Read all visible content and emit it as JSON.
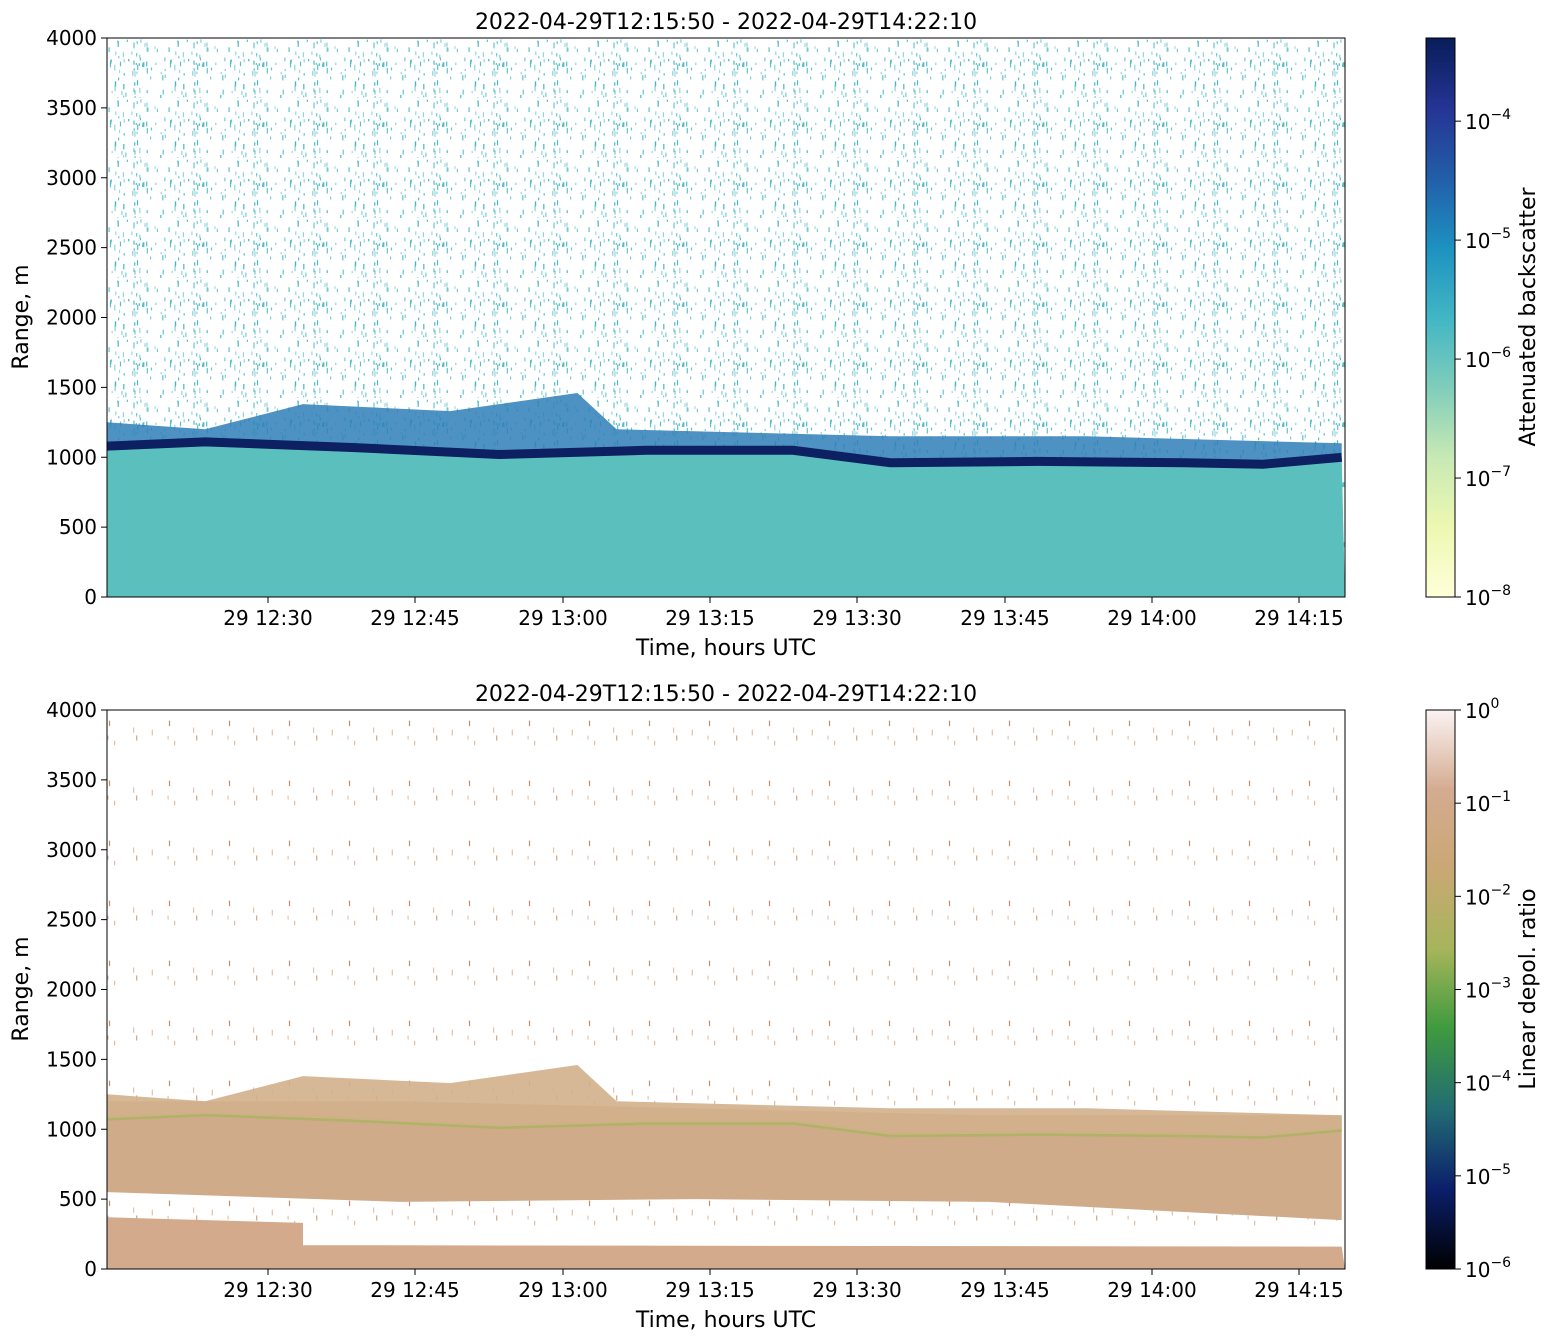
{
  "chart_data": [
    {
      "type": "heatmap",
      "title": "2022-04-29T12:15:50 - 2022-04-29T14:22:10",
      "xlabel": "Time, hours UTC",
      "ylabel": "Range, m",
      "x_ticks": [
        "29 12:30",
        "29 12:45",
        "29 13:00",
        "29 13:15",
        "29 13:30",
        "29 13:45",
        "29 14:00",
        "29 14:15"
      ],
      "y_ticks": [
        "0",
        "500",
        "1000",
        "1500",
        "2000",
        "2500",
        "3000",
        "3500",
        "4000"
      ],
      "xlim": [
        "2022-04-29T12:15:50",
        "2022-04-29T14:22:10"
      ],
      "ylim": [
        0,
        4000
      ],
      "colorbar": {
        "label": "Attenuated backscatter",
        "scale": "log",
        "range": [
          1e-08,
          0.0005
        ],
        "ticks": [
          {
            "base": "10",
            "exp": "−8"
          },
          {
            "base": "10",
            "exp": "−7"
          },
          {
            "base": "10",
            "exp": "−6"
          },
          {
            "base": "10",
            "exp": "−5"
          },
          {
            "base": "10",
            "exp": "−4"
          }
        ],
        "colormap": [
          "#ffffd9",
          "#edf8b1",
          "#c7e9b4",
          "#7fcdbb",
          "#41b6c4",
          "#1d91c0",
          "#225ea8",
          "#253494",
          "#081d58"
        ]
      },
      "features": {
        "cloud_base_m": [
          [
            0,
            1080
          ],
          [
            10,
            1110
          ],
          [
            25,
            1070
          ],
          [
            40,
            1020
          ],
          [
            55,
            1050
          ],
          [
            70,
            1050
          ],
          [
            80,
            960
          ],
          [
            95,
            970
          ],
          [
            110,
            960
          ],
          [
            118,
            950
          ],
          [
            126,
            1000
          ]
        ],
        "cloud_top_m": [
          [
            0,
            1250
          ],
          [
            10,
            1200
          ],
          [
            20,
            1380
          ],
          [
            35,
            1330
          ],
          [
            48,
            1460
          ],
          [
            52,
            1200
          ],
          [
            80,
            1150
          ],
          [
            100,
            1150
          ],
          [
            126,
            1100
          ]
        ]
      }
    },
    {
      "type": "heatmap",
      "title": "2022-04-29T12:15:50 - 2022-04-29T14:22:10",
      "xlabel": "Time, hours UTC",
      "ylabel": "Range, m",
      "x_ticks": [
        "29 12:30",
        "29 12:45",
        "29 13:00",
        "29 13:15",
        "29 13:30",
        "29 13:45",
        "29 14:00",
        "29 14:15"
      ],
      "y_ticks": [
        "0",
        "500",
        "1000",
        "1500",
        "2000",
        "2500",
        "3000",
        "3500",
        "4000"
      ],
      "xlim": [
        "2022-04-29T12:15:50",
        "2022-04-29T14:22:10"
      ],
      "ylim": [
        0,
        4000
      ],
      "colorbar": {
        "label": "Linear depol. ratio",
        "scale": "log",
        "range": [
          1e-06,
          1
        ],
        "ticks": [
          {
            "base": "10",
            "exp": "−6"
          },
          {
            "base": "10",
            "exp": "−5"
          },
          {
            "base": "10",
            "exp": "−4"
          },
          {
            "base": "10",
            "exp": "−3"
          },
          {
            "base": "10",
            "exp": "−2"
          },
          {
            "base": "10",
            "exp": "−1"
          },
          {
            "base": "10",
            "exp": "0"
          }
        ],
        "colormap": [
          "#000000",
          "#0b1f6b",
          "#226c73",
          "#3e9a3e",
          "#a6b55a",
          "#c9a874",
          "#d4ab90",
          "#fbf3f3"
        ]
      },
      "features": {
        "aerosol_layer_m": [
          [
            0,
            550,
            1200
          ],
          [
            30,
            480,
            1200
          ],
          [
            60,
            500,
            1150
          ],
          [
            90,
            480,
            1100
          ],
          [
            126,
            350,
            1100
          ]
        ],
        "lower_layer_m": [
          [
            0,
            0,
            370
          ],
          [
            20,
            0,
            330
          ],
          [
            20,
            0,
            170
          ],
          [
            126,
            0,
            160
          ]
        ]
      }
    }
  ]
}
